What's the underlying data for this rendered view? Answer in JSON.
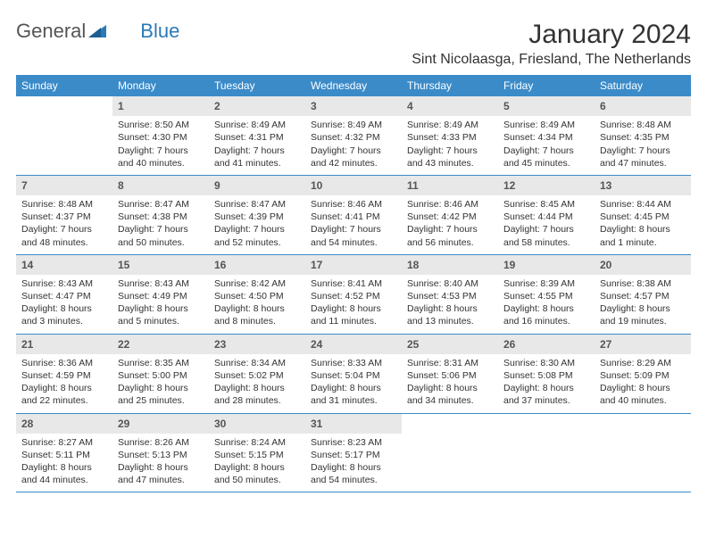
{
  "logo": {
    "text1": "General",
    "text2": "Blue"
  },
  "title": "January 2024",
  "location": "Sint Nicolaasga, Friesland, The Netherlands",
  "colors": {
    "header_bg": "#3b8bc9",
    "header_text": "#ffffff",
    "daynum_bg": "#e8e8e8",
    "daynum_text": "#555555",
    "border": "#3b8bc9",
    "body_text": "#333333",
    "logo_accent": "#2a7ab8"
  },
  "weekdays": [
    "Sunday",
    "Monday",
    "Tuesday",
    "Wednesday",
    "Thursday",
    "Friday",
    "Saturday"
  ],
  "weeks": [
    [
      {
        "n": "",
        "sr": "",
        "ss": "",
        "dl1": "",
        "dl2": ""
      },
      {
        "n": "1",
        "sr": "Sunrise: 8:50 AM",
        "ss": "Sunset: 4:30 PM",
        "dl1": "Daylight: 7 hours",
        "dl2": "and 40 minutes."
      },
      {
        "n": "2",
        "sr": "Sunrise: 8:49 AM",
        "ss": "Sunset: 4:31 PM",
        "dl1": "Daylight: 7 hours",
        "dl2": "and 41 minutes."
      },
      {
        "n": "3",
        "sr": "Sunrise: 8:49 AM",
        "ss": "Sunset: 4:32 PM",
        "dl1": "Daylight: 7 hours",
        "dl2": "and 42 minutes."
      },
      {
        "n": "4",
        "sr": "Sunrise: 8:49 AM",
        "ss": "Sunset: 4:33 PM",
        "dl1": "Daylight: 7 hours",
        "dl2": "and 43 minutes."
      },
      {
        "n": "5",
        "sr": "Sunrise: 8:49 AM",
        "ss": "Sunset: 4:34 PM",
        "dl1": "Daylight: 7 hours",
        "dl2": "and 45 minutes."
      },
      {
        "n": "6",
        "sr": "Sunrise: 8:48 AM",
        "ss": "Sunset: 4:35 PM",
        "dl1": "Daylight: 7 hours",
        "dl2": "and 47 minutes."
      }
    ],
    [
      {
        "n": "7",
        "sr": "Sunrise: 8:48 AM",
        "ss": "Sunset: 4:37 PM",
        "dl1": "Daylight: 7 hours",
        "dl2": "and 48 minutes."
      },
      {
        "n": "8",
        "sr": "Sunrise: 8:47 AM",
        "ss": "Sunset: 4:38 PM",
        "dl1": "Daylight: 7 hours",
        "dl2": "and 50 minutes."
      },
      {
        "n": "9",
        "sr": "Sunrise: 8:47 AM",
        "ss": "Sunset: 4:39 PM",
        "dl1": "Daylight: 7 hours",
        "dl2": "and 52 minutes."
      },
      {
        "n": "10",
        "sr": "Sunrise: 8:46 AM",
        "ss": "Sunset: 4:41 PM",
        "dl1": "Daylight: 7 hours",
        "dl2": "and 54 minutes."
      },
      {
        "n": "11",
        "sr": "Sunrise: 8:46 AM",
        "ss": "Sunset: 4:42 PM",
        "dl1": "Daylight: 7 hours",
        "dl2": "and 56 minutes."
      },
      {
        "n": "12",
        "sr": "Sunrise: 8:45 AM",
        "ss": "Sunset: 4:44 PM",
        "dl1": "Daylight: 7 hours",
        "dl2": "and 58 minutes."
      },
      {
        "n": "13",
        "sr": "Sunrise: 8:44 AM",
        "ss": "Sunset: 4:45 PM",
        "dl1": "Daylight: 8 hours",
        "dl2": "and 1 minute."
      }
    ],
    [
      {
        "n": "14",
        "sr": "Sunrise: 8:43 AM",
        "ss": "Sunset: 4:47 PM",
        "dl1": "Daylight: 8 hours",
        "dl2": "and 3 minutes."
      },
      {
        "n": "15",
        "sr": "Sunrise: 8:43 AM",
        "ss": "Sunset: 4:49 PM",
        "dl1": "Daylight: 8 hours",
        "dl2": "and 5 minutes."
      },
      {
        "n": "16",
        "sr": "Sunrise: 8:42 AM",
        "ss": "Sunset: 4:50 PM",
        "dl1": "Daylight: 8 hours",
        "dl2": "and 8 minutes."
      },
      {
        "n": "17",
        "sr": "Sunrise: 8:41 AM",
        "ss": "Sunset: 4:52 PM",
        "dl1": "Daylight: 8 hours",
        "dl2": "and 11 minutes."
      },
      {
        "n": "18",
        "sr": "Sunrise: 8:40 AM",
        "ss": "Sunset: 4:53 PM",
        "dl1": "Daylight: 8 hours",
        "dl2": "and 13 minutes."
      },
      {
        "n": "19",
        "sr": "Sunrise: 8:39 AM",
        "ss": "Sunset: 4:55 PM",
        "dl1": "Daylight: 8 hours",
        "dl2": "and 16 minutes."
      },
      {
        "n": "20",
        "sr": "Sunrise: 8:38 AM",
        "ss": "Sunset: 4:57 PM",
        "dl1": "Daylight: 8 hours",
        "dl2": "and 19 minutes."
      }
    ],
    [
      {
        "n": "21",
        "sr": "Sunrise: 8:36 AM",
        "ss": "Sunset: 4:59 PM",
        "dl1": "Daylight: 8 hours",
        "dl2": "and 22 minutes."
      },
      {
        "n": "22",
        "sr": "Sunrise: 8:35 AM",
        "ss": "Sunset: 5:00 PM",
        "dl1": "Daylight: 8 hours",
        "dl2": "and 25 minutes."
      },
      {
        "n": "23",
        "sr": "Sunrise: 8:34 AM",
        "ss": "Sunset: 5:02 PM",
        "dl1": "Daylight: 8 hours",
        "dl2": "and 28 minutes."
      },
      {
        "n": "24",
        "sr": "Sunrise: 8:33 AM",
        "ss": "Sunset: 5:04 PM",
        "dl1": "Daylight: 8 hours",
        "dl2": "and 31 minutes."
      },
      {
        "n": "25",
        "sr": "Sunrise: 8:31 AM",
        "ss": "Sunset: 5:06 PM",
        "dl1": "Daylight: 8 hours",
        "dl2": "and 34 minutes."
      },
      {
        "n": "26",
        "sr": "Sunrise: 8:30 AM",
        "ss": "Sunset: 5:08 PM",
        "dl1": "Daylight: 8 hours",
        "dl2": "and 37 minutes."
      },
      {
        "n": "27",
        "sr": "Sunrise: 8:29 AM",
        "ss": "Sunset: 5:09 PM",
        "dl1": "Daylight: 8 hours",
        "dl2": "and 40 minutes."
      }
    ],
    [
      {
        "n": "28",
        "sr": "Sunrise: 8:27 AM",
        "ss": "Sunset: 5:11 PM",
        "dl1": "Daylight: 8 hours",
        "dl2": "and 44 minutes."
      },
      {
        "n": "29",
        "sr": "Sunrise: 8:26 AM",
        "ss": "Sunset: 5:13 PM",
        "dl1": "Daylight: 8 hours",
        "dl2": "and 47 minutes."
      },
      {
        "n": "30",
        "sr": "Sunrise: 8:24 AM",
        "ss": "Sunset: 5:15 PM",
        "dl1": "Daylight: 8 hours",
        "dl2": "and 50 minutes."
      },
      {
        "n": "31",
        "sr": "Sunrise: 8:23 AM",
        "ss": "Sunset: 5:17 PM",
        "dl1": "Daylight: 8 hours",
        "dl2": "and 54 minutes."
      },
      {
        "n": "",
        "sr": "",
        "ss": "",
        "dl1": "",
        "dl2": ""
      },
      {
        "n": "",
        "sr": "",
        "ss": "",
        "dl1": "",
        "dl2": ""
      },
      {
        "n": "",
        "sr": "",
        "ss": "",
        "dl1": "",
        "dl2": ""
      }
    ]
  ]
}
